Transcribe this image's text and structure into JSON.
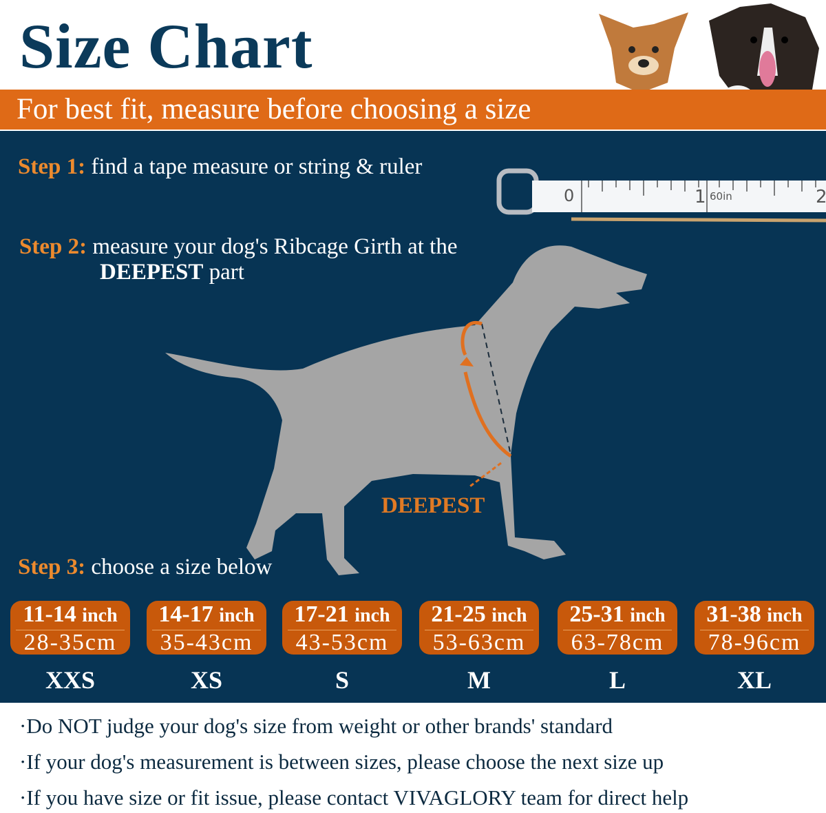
{
  "header": {
    "title": "Size Chart",
    "subtitle": "For best fit, measure before choosing a size"
  },
  "colors": {
    "navy": "#073454",
    "orange": "#df6a17",
    "pill": "#c8590b",
    "title": "#0b3a5a",
    "silhouette": "#a5a5a5"
  },
  "steps": [
    {
      "key": "Step 1:",
      "text": "find a tape measure or string & ruler"
    },
    {
      "key": "Step 2:",
      "text": "measure your dog's Ribcage Girth at the",
      "bold": "DEEPEST",
      "after": "part"
    },
    {
      "key": "Step 3:",
      "text": "choose a size below"
    }
  ],
  "tape": {
    "zero": "0",
    "one": "1",
    "two": "2",
    "unit": "60in"
  },
  "diagram_label": "DEEPEST",
  "sizes": [
    {
      "inch": "11-14",
      "unit": "inch",
      "cm": "28-35cm",
      "label": "XXS"
    },
    {
      "inch": "14-17",
      "unit": "inch",
      "cm": "35-43cm",
      "label": "XS"
    },
    {
      "inch": "17-21",
      "unit": "inch",
      "cm": "43-53cm",
      "label": "S"
    },
    {
      "inch": "21-25",
      "unit": "inch",
      "cm": "53-63cm",
      "label": "M"
    },
    {
      "inch": "25-31",
      "unit": "inch",
      "cm": "63-78cm",
      "label": "L"
    },
    {
      "inch": "31-38",
      "unit": "inch",
      "cm": "78-96cm",
      "label": "XL"
    }
  ],
  "notes": [
    "·Do NOT judge your dog's size from weight or other brands' standard",
    "·If your dog's measurement is between sizes, please choose the next size up",
    "·If you have size or fit issue, please contact VIVAGLORY team for direct help"
  ]
}
